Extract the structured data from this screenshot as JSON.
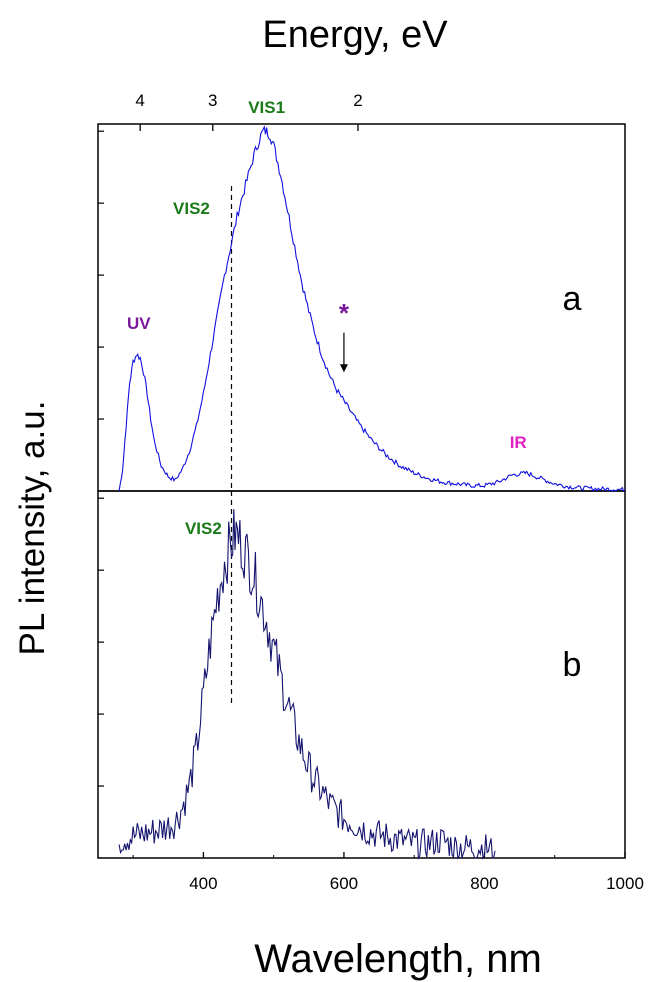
{
  "chart_data": [
    {
      "panel": "a",
      "type": "line",
      "title": "",
      "xlabel": "Wavelength, nm",
      "ylabel": "PL intensity, a.u.",
      "xlim": [
        250,
        1000
      ],
      "ylim": [
        0,
        1.02
      ],
      "top_axis": {
        "label": "Energy, eV",
        "ticks": [
          {
            "label": "4",
            "value": 4
          },
          {
            "label": "3",
            "value": 3
          },
          {
            "label": "2",
            "value": 2
          }
        ]
      },
      "series": [
        {
          "color": "#1010e0",
          "x": [
            280,
            285,
            290,
            295,
            300,
            305,
            310,
            315,
            320,
            325,
            330,
            340,
            350,
            360,
            370,
            380,
            390,
            400,
            410,
            420,
            430,
            440,
            450,
            460,
            470,
            480,
            485,
            490,
            495,
            500,
            510,
            520,
            530,
            540,
            550,
            560,
            570,
            580,
            590,
            600,
            620,
            640,
            660,
            680,
            700,
            720,
            740,
            760,
            780,
            800,
            820,
            840,
            860,
            880,
            900,
            920,
            940,
            960,
            980,
            1000
          ],
          "y": [
            0.0,
            0.06,
            0.18,
            0.3,
            0.36,
            0.38,
            0.37,
            0.33,
            0.27,
            0.2,
            0.14,
            0.07,
            0.04,
            0.03,
            0.06,
            0.11,
            0.18,
            0.27,
            0.38,
            0.49,
            0.6,
            0.69,
            0.78,
            0.85,
            0.92,
            0.98,
            1.0,
            1.0,
            0.99,
            0.96,
            0.88,
            0.78,
            0.68,
            0.58,
            0.5,
            0.43,
            0.37,
            0.32,
            0.28,
            0.25,
            0.19,
            0.14,
            0.1,
            0.07,
            0.05,
            0.035,
            0.025,
            0.02,
            0.015,
            0.015,
            0.025,
            0.045,
            0.05,
            0.035,
            0.02,
            0.012,
            0.008,
            0.006,
            0.005,
            0.004
          ]
        }
      ],
      "annotations": [
        {
          "text": "VIS1",
          "x": 490,
          "y": 1.05,
          "color": "#1a7a1a"
        },
        {
          "text": "VIS2",
          "x": 383,
          "y": 0.77,
          "color": "#1a7a1a"
        },
        {
          "text": "UV",
          "x": 308,
          "y": 0.45,
          "color": "#7a1a9a"
        },
        {
          "text": "*",
          "x": 600,
          "y": 0.47,
          "color": "#7a1a9a"
        },
        {
          "text": "IR",
          "x": 848,
          "y": 0.12,
          "color": "#e020c0"
        }
      ],
      "dashed_marker_x": 440,
      "arrow": {
        "x": 600,
        "from_y": 0.44,
        "to_y": 0.33
      },
      "panel_label": "a"
    },
    {
      "panel": "b",
      "type": "line",
      "title": "",
      "xlabel": "Wavelength, nm",
      "ylabel": "PL intensity, a.u.",
      "xlim": [
        250,
        1000
      ],
      "ylim": [
        0,
        1.02
      ],
      "x_ticks": [
        400,
        600,
        800,
        1000
      ],
      "series": [
        {
          "color": "#14146e",
          "x": [
            280,
            300,
            320,
            340,
            360,
            370,
            380,
            390,
            400,
            410,
            420,
            430,
            440,
            445,
            450,
            460,
            470,
            480,
            490,
            500,
            510,
            520,
            530,
            540,
            550,
            560,
            570,
            580,
            590,
            600,
            620,
            640,
            660,
            680,
            700,
            720,
            740,
            760,
            780,
            800,
            815
          ],
          "y": [
            0.05,
            0.06,
            0.07,
            0.08,
            0.1,
            0.14,
            0.2,
            0.3,
            0.45,
            0.6,
            0.73,
            0.82,
            0.88,
            0.9,
            0.89,
            0.85,
            0.8,
            0.73,
            0.66,
            0.58,
            0.5,
            0.43,
            0.36,
            0.3,
            0.25,
            0.21,
            0.18,
            0.15,
            0.13,
            0.11,
            0.09,
            0.07,
            0.06,
            0.05,
            0.04,
            0.04,
            0.05,
            0.03,
            0.03,
            0.03,
            0.02
          ]
        }
      ],
      "annotations": [
        {
          "text": "VIS2",
          "x": 400,
          "y": 0.9,
          "color": "#1a7a1a"
        }
      ],
      "dashed_marker_x": 440,
      "panel_label": "b"
    }
  ]
}
